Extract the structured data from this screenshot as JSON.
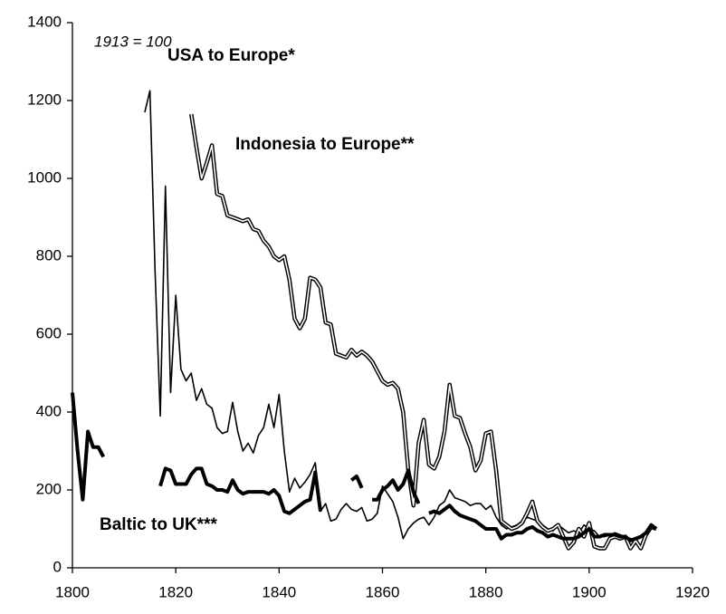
{
  "chart_data": {
    "type": "line",
    "annotation": "1913 = 100",
    "x": [
      1800,
      1801,
      1802,
      1803,
      1804,
      1805,
      1806,
      1807,
      1808,
      1809,
      1810,
      1811,
      1812,
      1813,
      1814,
      1815,
      1816,
      1817,
      1818,
      1819,
      1820,
      1821,
      1822,
      1823,
      1824,
      1825,
      1826,
      1827,
      1828,
      1829,
      1830,
      1831,
      1832,
      1833,
      1834,
      1835,
      1836,
      1837,
      1838,
      1839,
      1840,
      1841,
      1842,
      1843,
      1844,
      1845,
      1846,
      1847,
      1848,
      1849,
      1850,
      1851,
      1852,
      1853,
      1854,
      1855,
      1856,
      1857,
      1858,
      1859,
      1860,
      1861,
      1862,
      1863,
      1864,
      1865,
      1866,
      1867,
      1868,
      1869,
      1870,
      1871,
      1872,
      1873,
      1874,
      1875,
      1876,
      1877,
      1878,
      1879,
      1880,
      1881,
      1882,
      1883,
      1884,
      1885,
      1886,
      1887,
      1888,
      1889,
      1890,
      1891,
      1892,
      1893,
      1894,
      1895,
      1896,
      1897,
      1898,
      1899,
      1900,
      1901,
      1902,
      1903,
      1904,
      1905,
      1906,
      1907,
      1908,
      1909,
      1910,
      1911,
      1912,
      1913
    ],
    "series": [
      {
        "name": "USA to Europe*",
        "color": "#000000",
        "line_style": "single",
        "values": [
          null,
          null,
          null,
          null,
          null,
          null,
          null,
          null,
          null,
          null,
          null,
          null,
          null,
          null,
          1170,
          1225,
          760,
          390,
          980,
          450,
          700,
          510,
          480,
          500,
          430,
          460,
          420,
          410,
          360,
          345,
          350,
          425,
          350,
          300,
          320,
          295,
          340,
          360,
          420,
          360,
          445,
          300,
          195,
          230,
          205,
          220,
          240,
          270,
          145,
          165,
          120,
          125,
          150,
          165,
          150,
          145,
          155,
          120,
          125,
          140,
          210,
          190,
          170,
          130,
          75,
          100,
          115,
          125,
          130,
          110,
          130,
          160,
          170,
          200,
          180,
          175,
          170,
          160,
          165,
          165,
          150,
          160,
          130,
          110,
          100,
          105,
          110,
          120,
          130,
          125,
          120,
          110,
          100,
          95,
          110,
          100,
          90,
          95,
          90,
          110,
          100,
          95,
          80,
          80,
          85,
          90,
          85,
          80,
          75,
          75,
          80,
          85,
          105,
          100
        ]
      },
      {
        "name": "Indonesia to Europe**",
        "color": "#000000",
        "line_style": "double",
        "values": [
          null,
          null,
          null,
          null,
          null,
          null,
          null,
          null,
          null,
          null,
          null,
          null,
          null,
          null,
          null,
          null,
          null,
          null,
          null,
          null,
          null,
          null,
          null,
          1165,
          1080,
          1000,
          1040,
          1085,
          960,
          955,
          905,
          900,
          895,
          890,
          895,
          870,
          865,
          840,
          825,
          800,
          790,
          800,
          740,
          640,
          615,
          640,
          745,
          740,
          720,
          630,
          625,
          550,
          545,
          540,
          560,
          545,
          555,
          545,
          530,
          505,
          480,
          470,
          475,
          460,
          400,
          250,
          160,
          320,
          380,
          265,
          255,
          285,
          350,
          470,
          390,
          385,
          345,
          310,
          250,
          275,
          345,
          350,
          250,
          120,
          110,
          100,
          105,
          115,
          140,
          170,
          120,
          105,
          95,
          100,
          110,
          80,
          50,
          65,
          100,
          80,
          115,
          55,
          50,
          50,
          75,
          80,
          75,
          80,
          50,
          70,
          50,
          85,
          105,
          100
        ]
      },
      {
        "name": "Baltic to UK***",
        "color": "#000000",
        "line_style": "bold",
        "values": [
          450,
          300,
          175,
          350,
          310,
          310,
          285,
          null,
          null,
          null,
          null,
          null,
          null,
          null,
          null,
          null,
          null,
          210,
          255,
          250,
          215,
          215,
          215,
          240,
          255,
          255,
          215,
          210,
          200,
          200,
          195,
          225,
          200,
          190,
          195,
          195,
          195,
          195,
          190,
          200,
          185,
          145,
          140,
          150,
          160,
          170,
          175,
          245,
          145,
          null,
          null,
          null,
          null,
          null,
          225,
          235,
          205,
          null,
          175,
          175,
          200,
          210,
          225,
          200,
          215,
          250,
          195,
          165,
          null,
          140,
          145,
          140,
          150,
          160,
          145,
          135,
          130,
          125,
          120,
          110,
          100,
          100,
          100,
          75,
          85,
          85,
          90,
          90,
          100,
          105,
          95,
          90,
          80,
          85,
          80,
          75,
          75,
          75,
          80,
          90,
          100,
          80,
          80,
          85,
          85,
          85,
          80,
          80,
          70,
          75,
          80,
          90,
          110,
          100
        ]
      }
    ],
    "xlim": [
      1800,
      1920
    ],
    "xticks": [
      1800,
      1820,
      1840,
      1860,
      1880,
      1900,
      1920
    ],
    "ylim": [
      0,
      1400
    ],
    "yticks": [
      0,
      200,
      400,
      600,
      800,
      1000,
      1200,
      1400
    ],
    "grid": false,
    "legend": "direct"
  }
}
